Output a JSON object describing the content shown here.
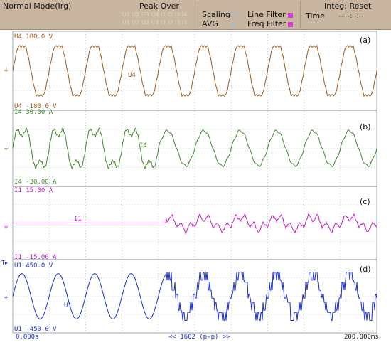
{
  "header": {
    "mode": "Normal Mode(Irg)",
    "peak_over": "Peak Over",
    "faded_line_1": "U1 U2 U3 U4 I1 I2 I3 I4",
    "faded_line_2": "U1 U2 U3 U4 I1 I2 I3 I4",
    "scaling_label": "Scaling",
    "avg_label": "AVG",
    "line_filter_label": "Line Filter",
    "freq_filter_label": "Freq Filter",
    "integ_label": "Integ: Reset",
    "time_label": "Time",
    "time_value": "-----:--:--"
  },
  "channels": [
    {
      "id": "a",
      "letter": "(a)",
      "name": "U4",
      "top_label": "U4   180.0 V",
      "bottom_label": "U4  -180.0 V",
      "trace_label": "U4",
      "color": "#9b5a1e"
    },
    {
      "id": "b",
      "letter": "(b)",
      "name": "I4",
      "top_label": "I4   30.00 A",
      "bottom_label": "I4  -30.00 A",
      "trace_label": "I4",
      "color": "#3d8a2a"
    },
    {
      "id": "c",
      "letter": "(c)",
      "name": "I1",
      "top_label": "I1   15.00 A",
      "bottom_label": "I1  -15.00 A",
      "trace_label": "I1",
      "color": "#c21fc8"
    },
    {
      "id": "d",
      "letter": "(d)",
      "name": "U1",
      "top_label": "U1   450.0 V",
      "bottom_label": "U1  -450.0 V",
      "trace_label": "U1",
      "color": "#1a2fc8"
    }
  ],
  "footer": {
    "time_start": "0.000s",
    "center": "<< 1602 (p-p) >>",
    "time_end": "200.000ms"
  },
  "colors": {
    "header_bg": "#c9b6a0",
    "grid": "#9ea8b4",
    "line_filter_indicator": "#d63ad0",
    "freq_filter_indicator": "#d63ad0",
    "scaling_indicator": "#b8b8b8",
    "avg_indicator": "#b8b8b8"
  }
}
